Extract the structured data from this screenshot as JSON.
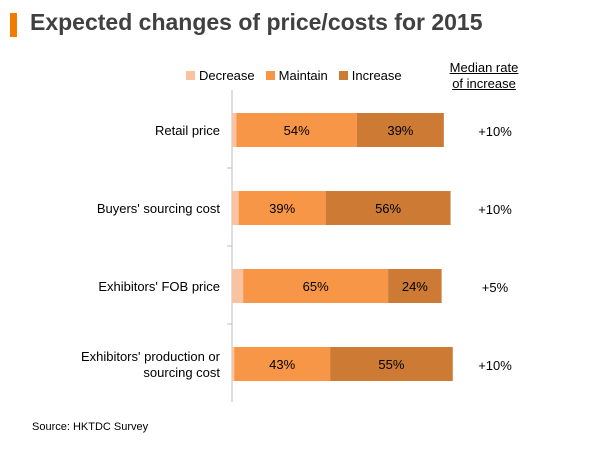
{
  "title": "Expected changes of price/costs for 2015",
  "source": "Source: HKTDC  Survey",
  "median_header": [
    "Median rate",
    "of increase"
  ],
  "colors": {
    "accent": "#f07d00",
    "decrease": "#f9c2a0",
    "maintain": "#f79646",
    "increase": "#cd7a35"
  },
  "chart_data": {
    "type": "bar",
    "orientation": "horizontal",
    "stacked": true,
    "categories": [
      [
        "Retail price"
      ],
      [
        "Buyers' sourcing cost"
      ],
      [
        "Exhibitors' FOB price"
      ],
      [
        "Exhibitors' production or",
        "sourcing cost"
      ]
    ],
    "series": [
      {
        "name": "Decrease",
        "values": [
          2,
          3,
          5,
          1
        ],
        "labels": [
          "",
          "",
          "",
          ""
        ]
      },
      {
        "name": "Maintain",
        "values": [
          54,
          39,
          65,
          43
        ],
        "labels": [
          "54%",
          "39%",
          "65%",
          "43%"
        ]
      },
      {
        "name": "Increase",
        "values": [
          39,
          56,
          24,
          55
        ],
        "labels": [
          "39%",
          "56%",
          "24%",
          "55%"
        ]
      }
    ],
    "median_rate": [
      "+10%",
      "+10%",
      "+5%",
      "+10%"
    ],
    "xlim": [
      0,
      100
    ],
    "legend": "top",
    "grid": false
  }
}
